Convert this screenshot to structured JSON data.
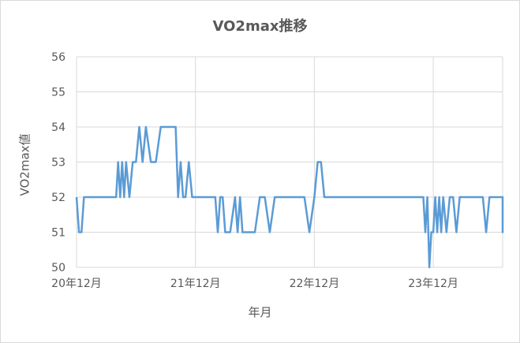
{
  "chart_data": {
    "type": "line",
    "title": "VO2max推移",
    "xlabel": "年月",
    "ylabel": "VO2max値",
    "ylim": [
      50,
      56
    ],
    "yticks": [
      50,
      51,
      52,
      53,
      54,
      55,
      56
    ],
    "xlim": [
      "2020-12",
      "2024-07"
    ],
    "xticks": [
      {
        "label": "20年12月",
        "date": "2020-12"
      },
      {
        "label": "21年12月",
        "date": "2021-12"
      },
      {
        "label": "22年12月",
        "date": "2022-12"
      },
      {
        "label": "23年12月",
        "date": "2023-12"
      }
    ],
    "grid": true,
    "color": "#5b9bd5",
    "series": [
      {
        "points": [
          [
            "2020-12",
            52
          ],
          [
            "2020-12",
            51
          ],
          [
            "2020-12",
            51
          ],
          [
            "2020-12",
            52
          ],
          [
            "2021-04",
            52
          ],
          [
            "2021-04",
            53
          ],
          [
            "2021-04",
            52
          ],
          [
            "2021-04",
            53
          ],
          [
            "2021-04",
            52
          ],
          [
            "2021-05",
            53
          ],
          [
            "2021-05",
            52
          ],
          [
            "2021-05",
            53
          ],
          [
            "2021-06",
            53
          ],
          [
            "2021-06",
            54
          ],
          [
            "2021-06",
            53
          ],
          [
            "2021-07",
            54
          ],
          [
            "2021-07",
            53
          ],
          [
            "2021-08",
            53
          ],
          [
            "2021-08",
            54
          ],
          [
            "2021-09",
            54
          ],
          [
            "2021-10",
            54
          ],
          [
            "2021-10",
            52
          ],
          [
            "2021-10",
            53
          ],
          [
            "2021-10",
            52
          ],
          [
            "2021-11",
            52
          ],
          [
            "2021-11",
            53
          ],
          [
            "2021-11",
            52
          ],
          [
            "2022-02",
            52
          ],
          [
            "2022-02",
            51
          ],
          [
            "2022-02",
            52
          ],
          [
            "2022-02",
            52
          ],
          [
            "2022-03",
            51
          ],
          [
            "2022-03",
            51
          ],
          [
            "2022-04",
            52
          ],
          [
            "2022-04",
            51
          ],
          [
            "2022-04",
            52
          ],
          [
            "2022-04",
            51
          ],
          [
            "2022-05",
            51
          ],
          [
            "2022-06",
            51
          ],
          [
            "2022-06",
            52
          ],
          [
            "2022-07",
            52
          ],
          [
            "2022-07",
            51
          ],
          [
            "2022-08",
            52
          ],
          [
            "2022-11",
            52
          ],
          [
            "2022-11",
            51
          ],
          [
            "2022-12",
            52
          ],
          [
            "2022-12",
            53
          ],
          [
            "2022-12",
            53
          ],
          [
            "2023-01",
            52
          ],
          [
            "2023-11",
            52
          ],
          [
            "2023-11",
            51
          ],
          [
            "2023-11",
            52
          ],
          [
            "2023-11",
            50
          ],
          [
            "2023-11",
            51
          ],
          [
            "2023-12",
            51
          ],
          [
            "2023-12",
            52
          ],
          [
            "2023-12",
            51
          ],
          [
            "2023-12",
            52
          ],
          [
            "2023-12",
            51
          ],
          [
            "2024-01",
            52
          ],
          [
            "2024-01",
            51
          ],
          [
            "2024-01",
            52
          ],
          [
            "2024-02",
            52
          ],
          [
            "2024-02",
            51
          ],
          [
            "2024-02",
            52
          ],
          [
            "2024-05",
            52
          ],
          [
            "2024-05",
            51
          ],
          [
            "2024-05",
            52
          ],
          [
            "2024-06",
            52
          ],
          [
            "2024-07",
            52
          ],
          [
            "2024-07",
            51
          ],
          [
            "2024-07",
            52
          ],
          [
            "2024-07",
            52
          ]
        ]
      }
    ]
  }
}
